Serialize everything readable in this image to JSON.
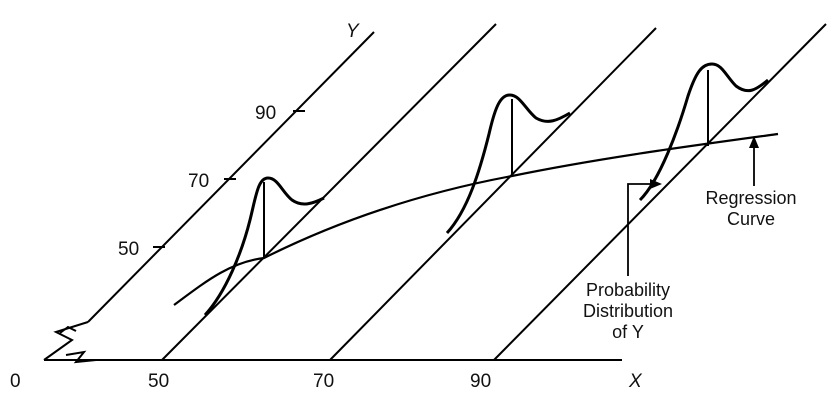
{
  "diagram": {
    "x_axis": {
      "label": "X",
      "origin_label": "0",
      "ticks": [
        "50",
        "70",
        "90"
      ]
    },
    "y_axis": {
      "label": "Y",
      "ticks": [
        "50",
        "70",
        "90"
      ]
    },
    "annotations": {
      "regression_curve": [
        "Regression",
        "Curve"
      ],
      "probability_distribution": [
        "Probability",
        "Distribution",
        "of Y"
      ]
    }
  }
}
